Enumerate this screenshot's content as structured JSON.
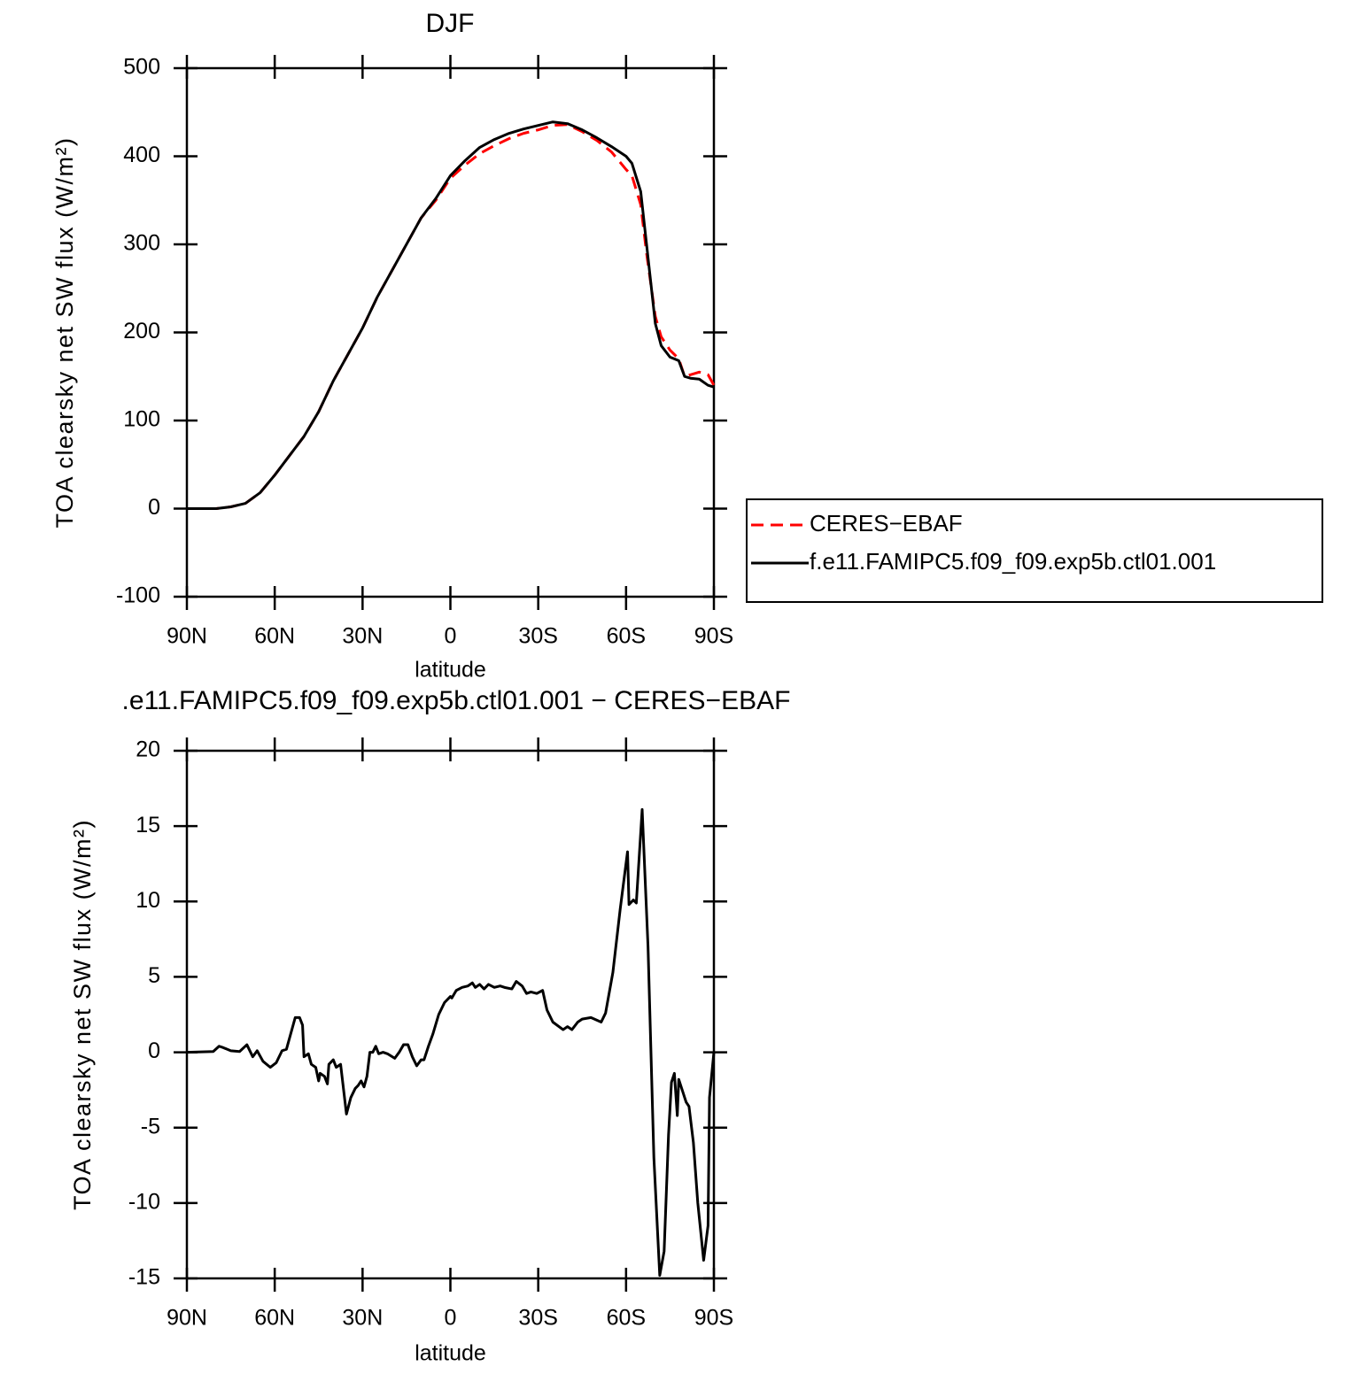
{
  "chart_data": [
    {
      "type": "line",
      "title": "DJF",
      "xlabel": "latitude",
      "ylabel": "TOA clearsky net SW flux (W/m²)",
      "x": [
        90,
        85,
        80,
        75,
        70,
        65,
        60,
        55,
        50,
        45,
        40,
        35,
        30,
        25,
        20,
        15,
        10,
        5,
        0,
        -5,
        -10,
        -15,
        -20,
        -25,
        -30,
        -35,
        -40,
        -45,
        -50,
        -55,
        -60,
        -62,
        -65,
        -67,
        -70,
        -72,
        -75,
        -78,
        -80,
        -82,
        -85,
        -88,
        -90
      ],
      "series": [
        {
          "name": "CERES−EBAF",
          "color": "#ff0000",
          "style": "dashed",
          "values": [
            0,
            0,
            0,
            2,
            6,
            18,
            38,
            60,
            82,
            110,
            145,
            175,
            205,
            240,
            270,
            300,
            330,
            350,
            375,
            390,
            403,
            412,
            420,
            426,
            430,
            435,
            436,
            428,
            418,
            405,
            385,
            378,
            345,
            290,
            218,
            195,
            180,
            170,
            150,
            152,
            155,
            152,
            140
          ]
        },
        {
          "name": "f.e11.FAMIPC5.f09_f09.exp5b.ctl01.001",
          "color": "#000000",
          "style": "solid",
          "values": [
            0,
            0,
            0,
            2,
            6,
            18,
            38,
            60,
            82,
            110,
            145,
            175,
            205,
            240,
            270,
            300,
            330,
            352,
            378,
            395,
            410,
            419,
            426,
            431,
            435,
            439,
            437,
            430,
            421,
            411,
            400,
            392,
            360,
            300,
            210,
            185,
            172,
            168,
            150,
            148,
            147,
            140,
            138
          ]
        }
      ],
      "xlim": [
        90,
        -90
      ],
      "xticks": [
        {
          "value": 90,
          "label": "90N"
        },
        {
          "value": 60,
          "label": "60N"
        },
        {
          "value": 30,
          "label": "30N"
        },
        0,
        {
          "value": -30,
          "label": "30S"
        },
        {
          "value": -60,
          "label": "60S"
        },
        {
          "value": -90,
          "label": "90S"
        }
      ],
      "ylim": [
        -100,
        500
      ],
      "yticks": [
        -100,
        0,
        100,
        200,
        300,
        400,
        500
      ],
      "legend": "right"
    },
    {
      "type": "line",
      "title": ".e11.FAMIPC5.f09_f09.exp5b.ctl01.001 − CERES−EBAF",
      "xlabel": "latitude",
      "ylabel": "TOA clearsky net SW flux (W/m²)",
      "x": [
        90,
        81,
        79,
        77.5,
        75,
        72,
        69.5,
        67.5,
        66,
        64,
        61.5,
        59.5,
        57.5,
        56,
        53,
        51.5,
        50.5,
        50,
        48.5,
        47.5,
        46,
        45,
        44.5,
        43,
        42,
        41.5,
        40,
        39,
        37.5,
        35.5,
        34,
        32.5,
        31.5,
        30.5,
        29.5,
        28.5,
        27.5,
        26.5,
        25.5,
        24.5,
        23,
        21.5,
        19,
        17.5,
        16,
        14.5,
        13,
        11.5,
        10,
        9,
        7.5,
        6,
        4,
        2,
        0,
        -0.5,
        -2,
        -4,
        -6,
        -7.5,
        -8.5,
        -10,
        -11.5,
        -13,
        -15,
        -17,
        -18.5,
        -21,
        -22.5,
        -24.5,
        -26,
        -27.5,
        -29.5,
        -31.5,
        -33,
        -35,
        -38.5,
        -40,
        -41.5,
        -43.5,
        -45,
        -48,
        -51.5,
        -53,
        -55.5,
        -58,
        -60.5,
        -61,
        -62.5,
        -63.5,
        -65.5,
        -67.5,
        -69.5,
        -71.5,
        -73,
        -74.5,
        -75.5,
        -76.5,
        -77.5,
        -78,
        -79,
        -80.5,
        -81.5,
        -83,
        -84.5,
        -86.5,
        -88,
        -88.5,
        -90
      ],
      "series": [
        {
          "color": "#000000",
          "style": "solid",
          "values": [
            0,
            0.05,
            0.4,
            0.3,
            0.1,
            0.05,
            0.5,
            -0.3,
            0.1,
            -0.6,
            -1.0,
            -0.7,
            0.1,
            0.2,
            2.3,
            2.3,
            1.8,
            -0.3,
            -0.1,
            -0.8,
            -1.0,
            -1.9,
            -1.4,
            -1.6,
            -2.1,
            -0.8,
            -0.5,
            -1.0,
            -0.8,
            -4.1,
            -3.0,
            -2.4,
            -2.2,
            -1.9,
            -2.3,
            -1.6,
            0,
            0,
            0.4,
            -0.1,
            0,
            -0.1,
            -0.4,
            0,
            0.5,
            0.5,
            -0.3,
            -0.9,
            -0.5,
            -0.5,
            0.4,
            1.2,
            2.5,
            3.3,
            3.7,
            3.6,
            4.1,
            4.3,
            4.4,
            4.6,
            4.3,
            4.5,
            4.2,
            4.5,
            4.3,
            4.4,
            4.3,
            4.2,
            4.7,
            4.4,
            3.9,
            4.0,
            3.9,
            4.1,
            2.8,
            2.0,
            1.5,
            1.7,
            1.5,
            2.0,
            2.2,
            2.3,
            2.0,
            2.6,
            5.3,
            9.5,
            13.3,
            9.8,
            10.1,
            9.9,
            16.1,
            7.0,
            -7.0,
            -14.8,
            -13.2,
            -5.5,
            -2.0,
            -1.4,
            -4.2,
            -1.8,
            -2.4,
            -3.3,
            -3.6,
            -6.0,
            -10.0,
            -13.8,
            -11.5,
            -3.0,
            0
          ]
        }
      ],
      "xlim": [
        90,
        -90
      ],
      "xticks": [
        {
          "value": 90,
          "label": "90N"
        },
        {
          "value": 60,
          "label": "60N"
        },
        {
          "value": 30,
          "label": "30N"
        },
        0,
        {
          "value": -30,
          "label": "30S"
        },
        {
          "value": -60,
          "label": "60S"
        },
        {
          "value": -90,
          "label": "90S"
        }
      ],
      "ylim": [
        -15,
        20
      ],
      "yticks": [
        -15,
        -10,
        -5,
        0,
        5,
        10,
        15,
        20
      ]
    }
  ]
}
